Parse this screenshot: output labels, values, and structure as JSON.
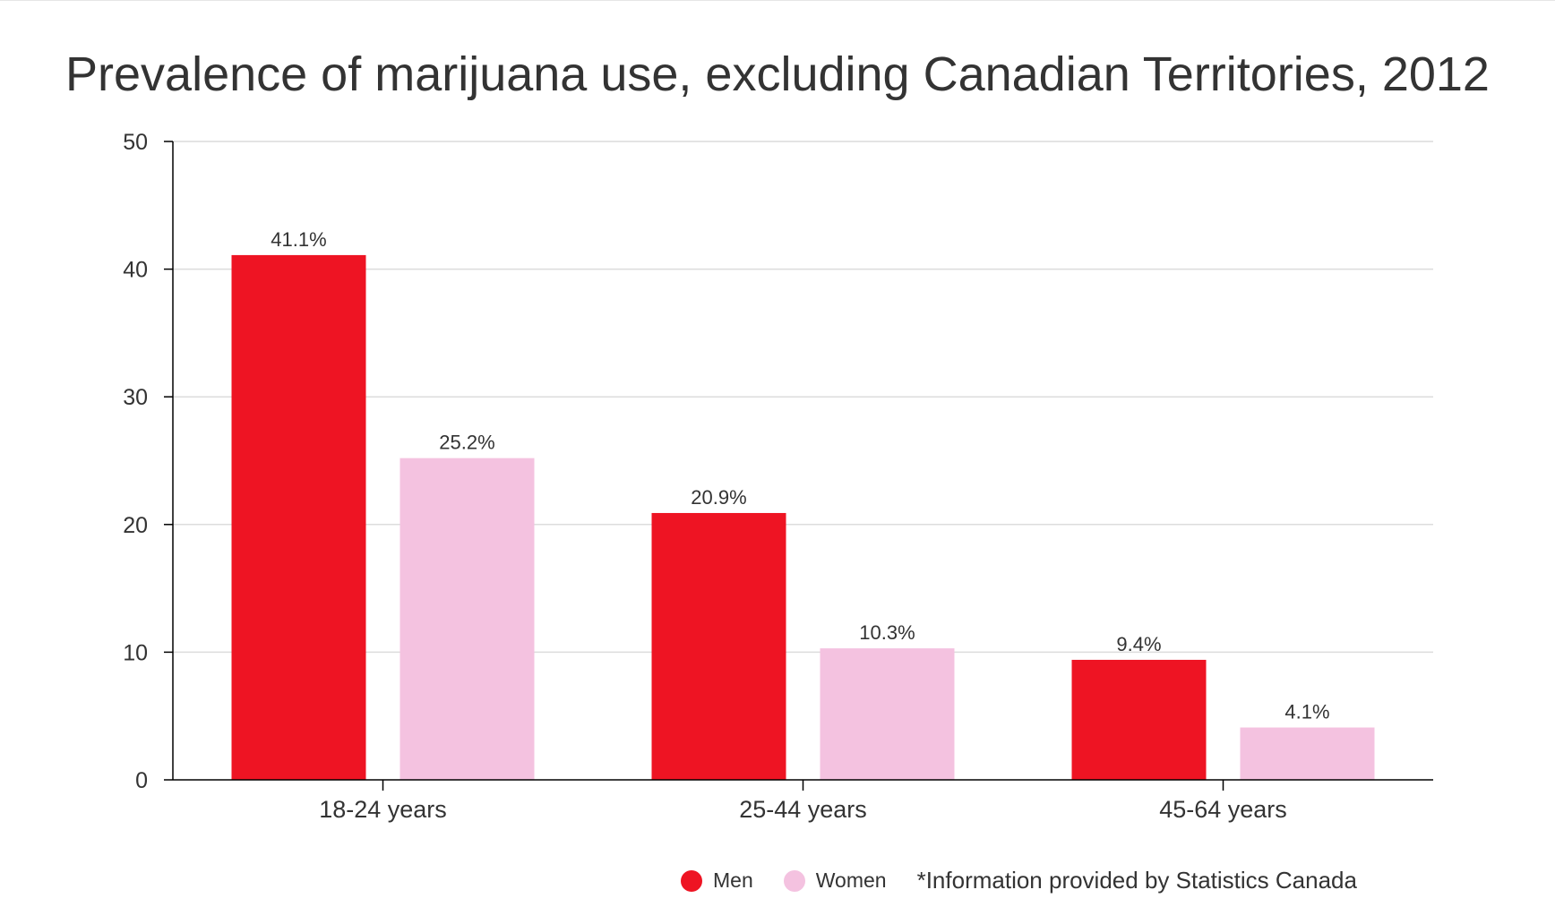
{
  "chart_data": {
    "type": "bar",
    "title": "Prevalence of marijuana use, excluding Canadian Territories, 2012",
    "categories": [
      "18-24 years",
      "25-44 years",
      "45-64 years"
    ],
    "series": [
      {
        "name": "Men",
        "color": "#ee1423",
        "values": [
          41.1,
          20.9,
          9.4
        ],
        "labels": [
          "41.1%",
          "20.9%",
          "9.4%"
        ]
      },
      {
        "name": "Women",
        "color": "#f4c2e0",
        "values": [
          25.2,
          10.3,
          4.1
        ],
        "labels": [
          "25.2%",
          "10.3%",
          "4.1%"
        ]
      }
    ],
    "ylim": [
      0,
      50
    ],
    "yticks": [
      0,
      10,
      20,
      30,
      40,
      50
    ],
    "grid": true,
    "legend_placement": "bottom-right",
    "note": "*Information provided by Statistics Canada"
  }
}
